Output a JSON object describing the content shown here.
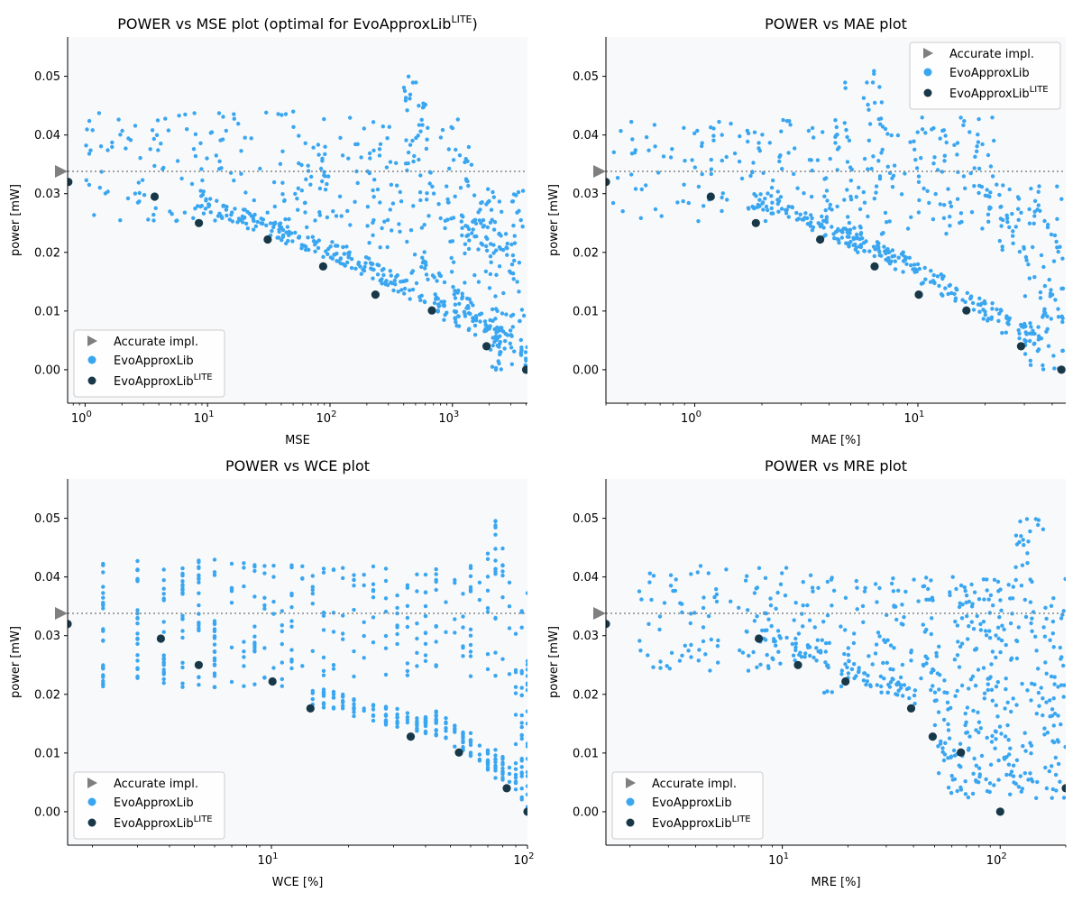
{
  "figure": {
    "series_names": {
      "accurate": "Accurate impl.",
      "evo": "EvoApproxLib",
      "lite_base": "EvoApproxLib",
      "lite_sup": "LITE"
    },
    "colors": {
      "accurate": "#7f7f7f",
      "evo": "#3aa6f0",
      "lite": "#183848",
      "plot_bg": "#f7f9fb",
      "ref_line": "#888888"
    }
  },
  "chart_data": [
    {
      "type": "scatter",
      "title": "POWER vs MSE plot (optimal for EvoApproxLib",
      "title_sup": "LITE",
      "title_tail": ")",
      "xlabel": "MSE",
      "ylabel": "power [mW]",
      "xscale": "log",
      "xlim": [
        0.72,
        4100
      ],
      "ylim": [
        -0.0057,
        0.0567
      ],
      "xticks": [
        {
          "v": 1,
          "base": "10",
          "exp": "0"
        },
        {
          "v": 10,
          "base": "10",
          "exp": "1"
        },
        {
          "v": 100,
          "base": "10",
          "exp": "2"
        },
        {
          "v": 1000,
          "base": "10",
          "exp": "3"
        }
      ],
      "yticks": [
        "0.00",
        "0.01",
        "0.02",
        "0.03",
        "0.04",
        "0.05"
      ],
      "legend_loc": "lower-left",
      "accurate_power": 0.0338,
      "lite_points": [
        [
          0.73,
          0.032
        ],
        [
          3.7,
          0.0295
        ],
        [
          8.5,
          0.025
        ],
        [
          31,
          0.0222
        ],
        [
          88,
          0.0176
        ],
        [
          235,
          0.0128
        ],
        [
          680,
          0.0101
        ],
        [
          1900,
          0.004
        ],
        [
          4000,
          0.0
        ]
      ],
      "clusters": [
        {
          "x0": 1,
          "x1": 60,
          "y0": 0.024,
          "y1": 0.044,
          "n": 130
        },
        {
          "x0": 60,
          "x1": 1500,
          "y0": 0.024,
          "y1": 0.043,
          "n": 150
        },
        {
          "x0": 400,
          "x1": 650,
          "y0": 0.044,
          "y1": 0.051,
          "n": 15
        },
        {
          "x0": 1500,
          "x1": 4000,
          "y0": 0.02,
          "y1": 0.031,
          "n": 60
        },
        {
          "x0": 2000,
          "x1": 4000,
          "y0": 0.0,
          "y1": 0.02,
          "n": 55
        },
        {
          "x0": 200,
          "x1": 2000,
          "y0": 0.012,
          "y1": 0.026,
          "n": 45
        }
      ],
      "fronts": [
        {
          "x0": 8,
          "y0": 0.0275,
          "x1": 120,
          "y1": 0.018,
          "n": 110,
          "spread": 0.003
        },
        {
          "x0": 100,
          "y0": 0.019,
          "x1": 2500,
          "y1": 0.003,
          "n": 130,
          "spread": 0.0035
        },
        {
          "x0": 500,
          "y0": 0.017,
          "x1": 4000,
          "y1": 0.001,
          "n": 70,
          "spread": 0.003
        }
      ]
    },
    {
      "type": "scatter",
      "title": "POWER vs MAE plot",
      "title_sup": "",
      "title_tail": "",
      "xlabel": "MAE [%]",
      "ylabel": "power [mW]",
      "xscale": "log",
      "xlim": [
        0.4,
        46
      ],
      "ylim": [
        -0.0057,
        0.0567
      ],
      "xticks": [
        {
          "v": 1,
          "base": "10",
          "exp": "0"
        },
        {
          "v": 10,
          "base": "10",
          "exp": "1"
        }
      ],
      "yticks": [
        "0.00",
        "0.01",
        "0.02",
        "0.03",
        "0.04",
        "0.05"
      ],
      "legend_loc": "upper-right",
      "accurate_power": 0.0338,
      "lite_points": [
        [
          0.4,
          0.032
        ],
        [
          1.18,
          0.0295
        ],
        [
          1.88,
          0.025
        ],
        [
          3.65,
          0.0222
        ],
        [
          6.4,
          0.0176
        ],
        [
          10.1,
          0.0128
        ],
        [
          16.5,
          0.0101
        ],
        [
          29,
          0.004
        ],
        [
          44,
          0.0
        ]
      ],
      "clusters": [
        {
          "x0": 0.42,
          "x1": 5,
          "y0": 0.025,
          "y1": 0.043,
          "n": 130
        },
        {
          "x0": 4,
          "x1": 22,
          "y0": 0.023,
          "y1": 0.043,
          "n": 150
        },
        {
          "x0": 4.5,
          "x1": 7,
          "y0": 0.043,
          "y1": 0.051,
          "n": 12
        },
        {
          "x0": 20,
          "x1": 45,
          "y0": 0.02,
          "y1": 0.032,
          "n": 60
        },
        {
          "x0": 30,
          "x1": 45,
          "y0": 0.0,
          "y1": 0.02,
          "n": 55
        }
      ],
      "fronts": [
        {
          "x0": 1.8,
          "y0": 0.028,
          "x1": 8,
          "y1": 0.0175,
          "n": 110,
          "spread": 0.003
        },
        {
          "x0": 6.5,
          "y0": 0.019,
          "x1": 35,
          "y1": 0.003,
          "n": 130,
          "spread": 0.0035
        }
      ]
    },
    {
      "type": "scatter",
      "title": "POWER vs WCE plot",
      "title_sup": "",
      "title_tail": "",
      "xlabel": "WCE [%]",
      "ylabel": "power [mW]",
      "xscale": "log",
      "xlim": [
        1.6,
        100
      ],
      "ylim": [
        -0.0057,
        0.0567
      ],
      "xticks": [
        {
          "v": 10,
          "base": "10",
          "exp": "1"
        },
        {
          "v": 100,
          "base": "10",
          "exp": "2"
        }
      ],
      "yticks": [
        "0.00",
        "0.01",
        "0.02",
        "0.03",
        "0.04",
        "0.05"
      ],
      "legend_loc": "lower-left",
      "accurate_power": 0.0338,
      "lite_points": [
        [
          1.6,
          0.032
        ],
        [
          3.7,
          0.0295
        ],
        [
          5.2,
          0.025
        ],
        [
          10.1,
          0.0222
        ],
        [
          14.2,
          0.0176
        ],
        [
          35,
          0.0128
        ],
        [
          54,
          0.0101
        ],
        [
          83,
          0.004
        ],
        [
          100,
          0.0
        ]
      ],
      "columns": [
        2.2,
        3.0,
        3.8,
        4.5,
        5.2,
        6.0,
        7.0,
        7.8,
        8.6,
        9.4,
        10.2,
        11.0,
        12.0,
        13.2,
        14.5,
        16.0,
        17.5,
        19.0,
        21.0,
        23.0,
        25.0,
        28.0,
        31.0,
        34.0,
        37.0,
        40.0,
        44.0,
        48.0,
        52.0,
        56.0,
        60.0,
        65.0,
        70.0,
        75.0,
        80.0,
        85.0,
        90.0,
        95.0,
        100.0
      ],
      "clusters": [
        {
          "x0": 2.2,
          "x1": 12,
          "y0": 0.021,
          "y1": 0.043,
          "n": 190,
          "snap": true
        },
        {
          "x0": 12,
          "x1": 100,
          "y0": 0.023,
          "y1": 0.042,
          "n": 150,
          "snap": true
        },
        {
          "x0": 70,
          "x1": 78,
          "y0": 0.04,
          "y1": 0.051,
          "n": 16,
          "snap": true
        },
        {
          "x0": 90,
          "x1": 100,
          "y0": 0.0,
          "y1": 0.026,
          "n": 45,
          "snap": true
        }
      ],
      "fronts": [
        {
          "x0": 14,
          "y0": 0.0185,
          "x1": 45,
          "y1": 0.0125,
          "n": 90,
          "spread": 0.003,
          "snap": true
        },
        {
          "x0": 40,
          "y0": 0.0145,
          "x1": 95,
          "y1": 0.0035,
          "n": 100,
          "spread": 0.0035,
          "snap": true
        }
      ]
    },
    {
      "type": "scatter",
      "title": "POWER vs MRE plot",
      "title_sup": "",
      "title_tail": "",
      "xlabel": "MRE [%]",
      "ylabel": "power [mW]",
      "xscale": "log",
      "xlim": [
        1.55,
        200
      ],
      "ylim": [
        -0.0057,
        0.0567
      ],
      "xticks": [
        {
          "v": 10,
          "base": "10",
          "exp": "1"
        },
        {
          "v": 100,
          "base": "10",
          "exp": "2"
        }
      ],
      "yticks": [
        "0.00",
        "0.01",
        "0.02",
        "0.03",
        "0.04",
        "0.05"
      ],
      "legend_loc": "lower-left",
      "accurate_power": 0.0338,
      "lite_points": [
        [
          1.55,
          0.032
        ],
        [
          7.8,
          0.0295
        ],
        [
          11.8,
          0.025
        ],
        [
          19.5,
          0.0222
        ],
        [
          39,
          0.0176
        ],
        [
          49,
          0.0128
        ],
        [
          66,
          0.0101
        ],
        [
          200,
          0.004
        ],
        [
          100,
          0.0
        ]
      ],
      "clusters": [
        {
          "x0": 2.2,
          "x1": 15,
          "y0": 0.024,
          "y1": 0.042,
          "n": 120
        },
        {
          "x0": 15,
          "x1": 200,
          "y0": 0.02,
          "y1": 0.04,
          "n": 240
        },
        {
          "x0": 110,
          "x1": 160,
          "y0": 0.038,
          "y1": 0.051,
          "n": 20
        },
        {
          "x0": 50,
          "x1": 200,
          "y0": 0.002,
          "y1": 0.022,
          "n": 180
        }
      ],
      "fronts": [
        {
          "x0": 8,
          "y0": 0.029,
          "x1": 40,
          "y1": 0.018,
          "n": 80,
          "spread": 0.003
        }
      ]
    }
  ]
}
